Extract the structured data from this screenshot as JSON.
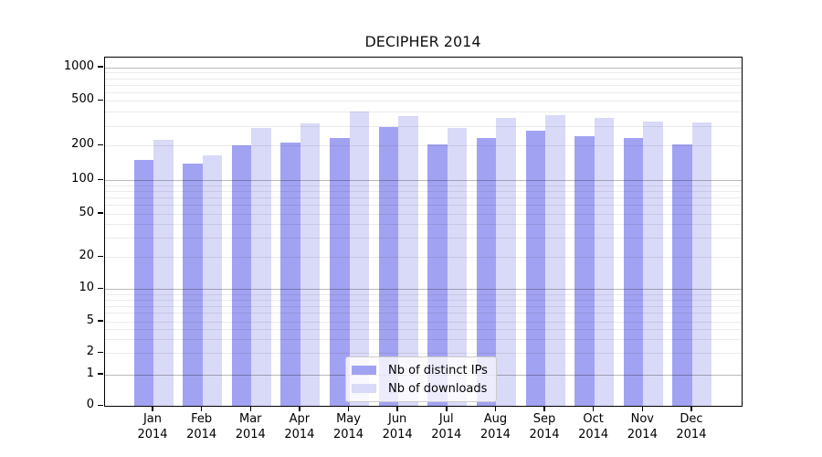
{
  "title": "DECIPHER 2014",
  "chart_data": {
    "type": "bar",
    "title": "DECIPHER 2014",
    "categories": [
      "Jan 2014",
      "Feb 2014",
      "Mar 2014",
      "Apr 2014",
      "May 2014",
      "Jun 2014",
      "Jul 2014",
      "Aug 2014",
      "Sep 2014",
      "Oct 2014",
      "Nov 2014",
      "Dec 2014"
    ],
    "series": [
      {
        "name": "Nb of distinct IPs",
        "color": "#a2a2f2",
        "values": [
          150,
          140,
          200,
          215,
          232,
          295,
          207,
          235,
          270,
          245,
          232,
          206
        ]
      },
      {
        "name": "Nb of downloads",
        "color": "#d9d9f8",
        "values": [
          225,
          165,
          290,
          315,
          400,
          370,
          290,
          355,
          372,
          355,
          325,
          320
        ]
      }
    ],
    "y_scale": "symlog",
    "y_ticks": [
      0,
      1,
      2,
      5,
      10,
      20,
      50,
      100,
      200,
      500,
      1000
    ],
    "ylim": [
      0,
      1500
    ],
    "xlabel": "",
    "ylabel": "",
    "grid": "both (major + minor horizontal gridlines)",
    "legend_position": "lower center"
  },
  "legend": {
    "items": [
      {
        "label": "Nb of distinct IPs",
        "color": "#a2a2f2"
      },
      {
        "label": "Nb of downloads",
        "color": "#d9d9f8"
      }
    ]
  }
}
